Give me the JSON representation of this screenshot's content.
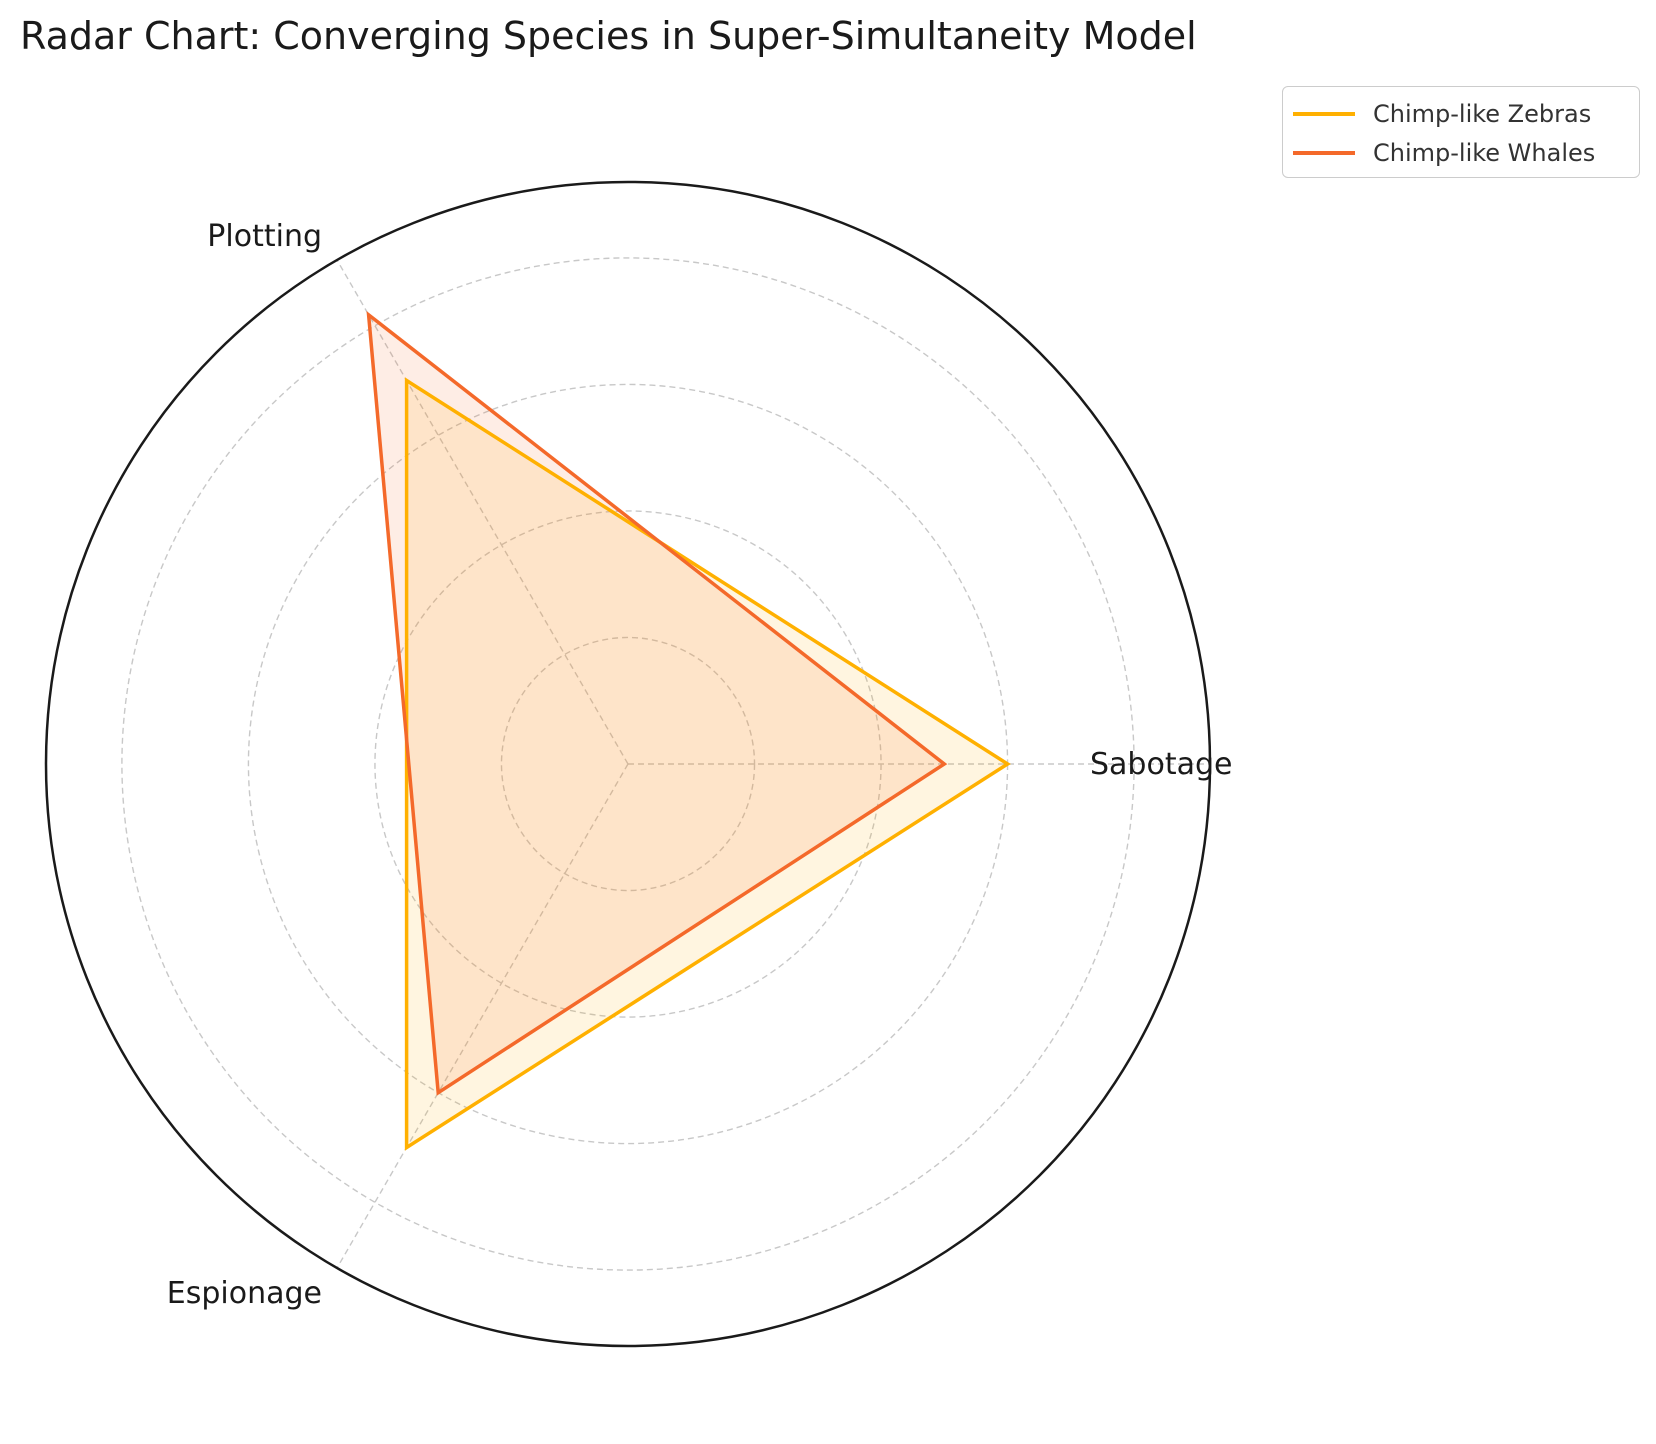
{
  "chart_data": {
    "type": "radar",
    "title": "Radar Chart: Converging Species in Super-Simultaneity Model",
    "categories": [
      "Sabotage",
      "Plotting",
      "Espionage"
    ],
    "rlim": [
      0,
      46
    ],
    "rgrid": [
      10,
      20,
      30,
      40
    ],
    "grid": true,
    "legend_position": "top-right",
    "series": [
      {
        "name": "Chimp-like Zebras",
        "values": [
          30,
          35,
          35
        ],
        "color": "#FFB000"
      },
      {
        "name": "Chimp-like Whales",
        "values": [
          25,
          41,
          30
        ],
        "color": "#F4692A"
      }
    ]
  }
}
